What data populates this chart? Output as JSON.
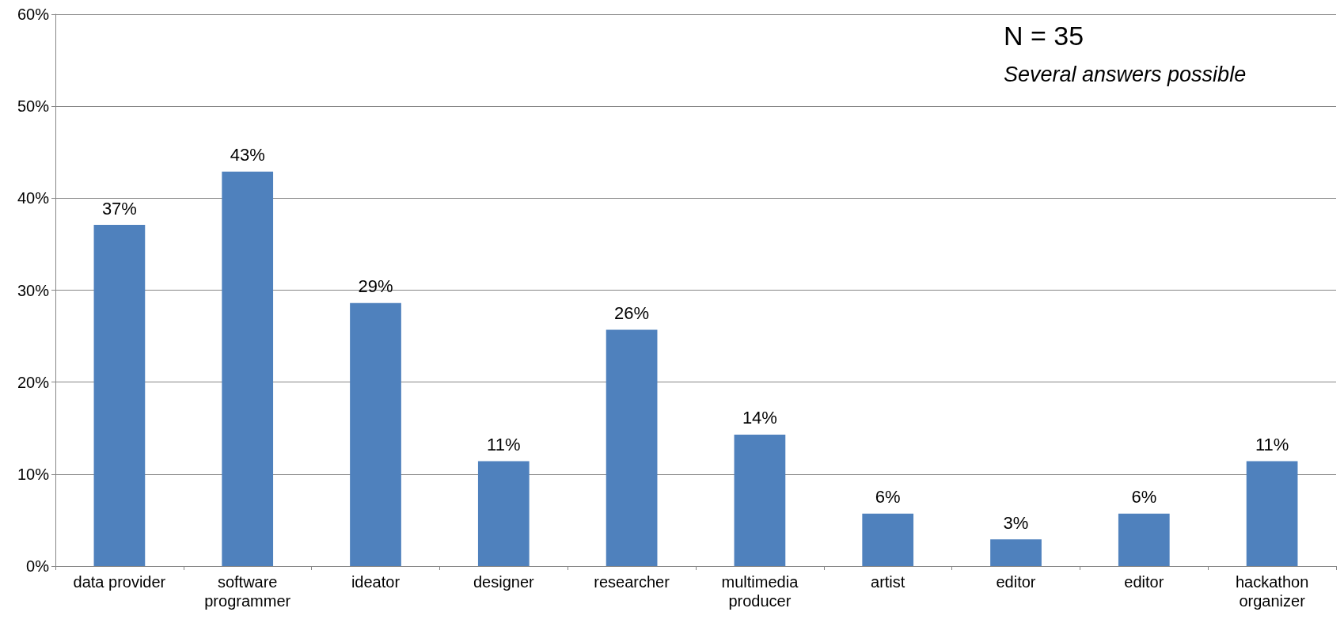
{
  "chart_data": {
    "type": "bar",
    "categories": [
      "data provider",
      "software programmer",
      "ideator",
      "designer",
      "researcher",
      "multimedia producer",
      "artist",
      "editor",
      "editor",
      "hackathon organizer"
    ],
    "values": [
      37.1,
      42.9,
      28.6,
      11.4,
      25.7,
      14.3,
      5.7,
      2.9,
      5.7,
      11.4
    ],
    "value_labels": [
      "37%",
      "43%",
      "29%",
      "11%",
      "26%",
      "14%",
      "6%",
      "3%",
      "6%",
      "11%"
    ],
    "color": "#4f81bd",
    "ylim": [
      0,
      60
    ],
    "yticks": [
      {
        "value": 0,
        "label": "0%"
      },
      {
        "value": 10,
        "label": "10%"
      },
      {
        "value": 20,
        "label": "20%"
      },
      {
        "value": 30,
        "label": "30%"
      },
      {
        "value": 40,
        "label": "40%"
      },
      {
        "value": 50,
        "label": "50%"
      },
      {
        "value": 60,
        "label": "60%"
      }
    ],
    "grid": "y",
    "annotations": [
      "N = 35",
      "Several answers possible"
    ]
  }
}
